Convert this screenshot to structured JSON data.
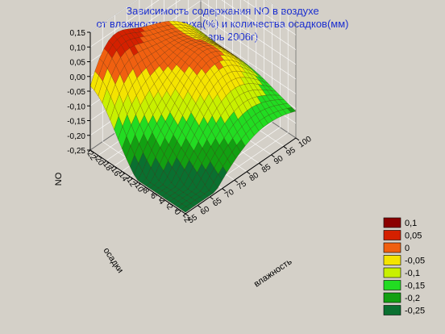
{
  "title_lines": [
    "Зависимость содержания NO в воздухе",
    "от влажности воздуха(%) и количества осадков(мм)",
    "(январь 2006г)"
  ],
  "chart_data": {
    "type": "surface",
    "zlabel": "NO",
    "xlabel": "влажность",
    "ylabel": "осадки",
    "z_ticks": [
      "0,15",
      "0,10",
      "0,05",
      "0,00",
      "-0,05",
      "-0,10",
      "-0,15",
      "-0,20",
      "-0,25"
    ],
    "x_ticks": [
      "55",
      "60",
      "65",
      "70",
      "75",
      "80",
      "85",
      "90",
      "95",
      "100"
    ],
    "y_ticks": [
      "22",
      "20",
      "18",
      "16",
      "14",
      "12",
      "10",
      "8",
      "6",
      "4",
      "2",
      "0",
      "-2"
    ],
    "zlim": [
      -0.25,
      0.15
    ],
    "xlim": [
      55,
      100
    ],
    "ylim": [
      -2,
      22
    ],
    "legend": [
      {
        "label": "0,1",
        "color": "#8b0000"
      },
      {
        "label": "0,05",
        "color": "#d42000"
      },
      {
        "label": "0",
        "color": "#f06010"
      },
      {
        "label": "-0,05",
        "color": "#f4e400"
      },
      {
        "label": "-0,1",
        "color": "#c8f000"
      },
      {
        "label": "-0,15",
        "color": "#22dc22"
      },
      {
        "label": "-0,2",
        "color": "#12a012"
      },
      {
        "label": "-0,25",
        "color": "#0a7030"
      }
    ]
  }
}
